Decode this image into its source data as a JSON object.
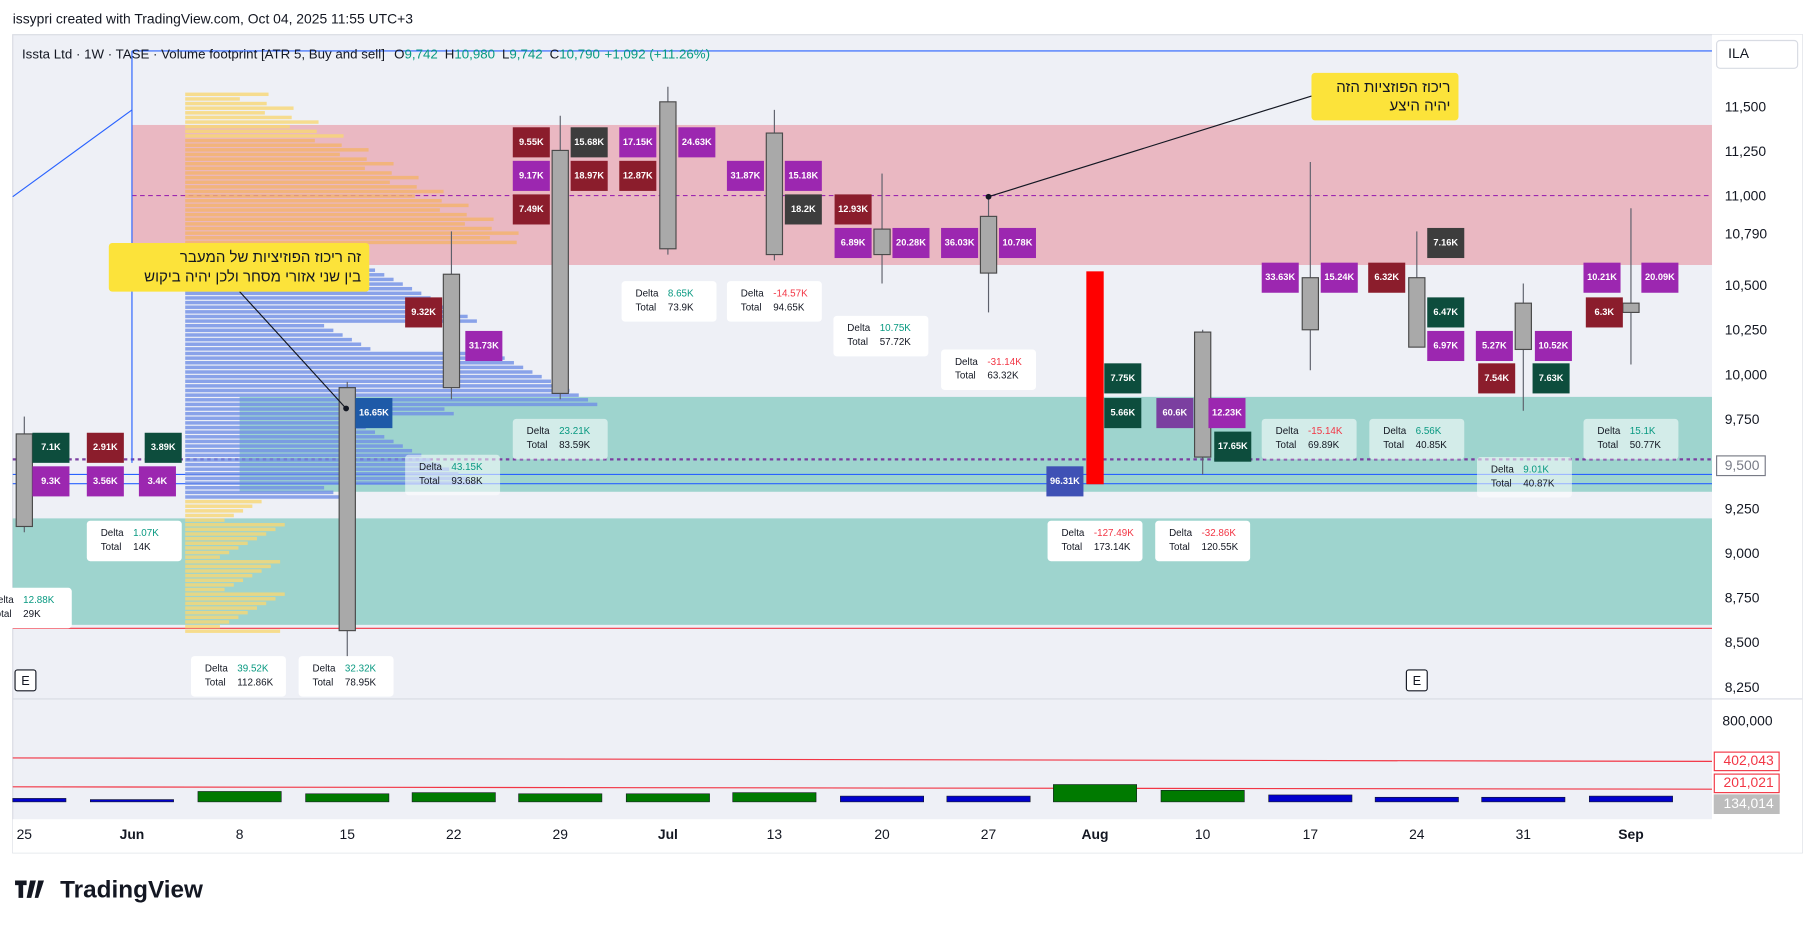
{
  "header": {
    "credit": "issypri created with TradingView.com, Oct 04, 2025 11:55 UTC+3",
    "symbol": "Issta Ltd · 1W · TASE · Volume footprint [ATR 5, Buy and sell]",
    "ohlc": [
      {
        "key": "O",
        "value": "9,742"
      },
      {
        "key": "H",
        "value": "10,980"
      },
      {
        "key": "L",
        "value": "9,742"
      },
      {
        "key": "C",
        "value": "10,790"
      }
    ],
    "change": "+1,092 (+11.26%)"
  },
  "price_axis": {
    "currency": "ILA",
    "ticks": [
      "11,500",
      "11,250",
      "11,000",
      "10,500",
      "10,250",
      "10,000",
      "9,750",
      "9,250",
      "9,000",
      "8,750",
      "8,500",
      "8,250"
    ],
    "last_price": "10,790",
    "marker": "9,500"
  },
  "volume_axis": {
    "tick": "800,000",
    "badges": [
      "402,043",
      "201,021",
      "134,014"
    ]
  },
  "time_axis": [
    "25",
    "Jun",
    "8",
    "15",
    "22",
    "29",
    "Jul",
    "13",
    "20",
    "27",
    "Aug",
    "10",
    "17",
    "24",
    "31",
    "Sep"
  ],
  "annotations": [
    {
      "lines": [
        "ריכוז הפוזציות הזה",
        "יהיה היצע"
      ]
    },
    {
      "lines": [
        "זה ריכוז הפוזיציות של המעבר",
        "בין שני אזורי מסחר ולכן יהיה ביקוש"
      ]
    }
  ],
  "delta_label": "Delta",
  "total_label": "Total",
  "delta_boxes": [
    {
      "delta": "1.07K",
      "total": "14K"
    },
    {
      "delta": "12.88K",
      "total": "29K"
    },
    {
      "delta": "39.52K",
      "total": "112.86K"
    },
    {
      "delta": "32.32K",
      "total": "78.95K"
    },
    {
      "delta": "43.15K",
      "total": "93.68K"
    },
    {
      "delta": "23.21K",
      "total": "83.59K"
    },
    {
      "delta": "8.65K",
      "total": "73.9K"
    },
    {
      "delta": "-14.57K",
      "total": "94.65K"
    },
    {
      "delta": "10.75K",
      "total": "57.72K"
    },
    {
      "delta": "-31.14K",
      "total": "63.32K"
    },
    {
      "delta": "-127.49K",
      "total": "173.14K"
    },
    {
      "delta": "-32.86K",
      "total": "120.55K"
    },
    {
      "delta": "-15.14K",
      "total": "69.89K"
    },
    {
      "delta": "6.56K",
      "total": "40.85K"
    },
    {
      "delta": "9.01K",
      "total": "40.87K"
    },
    {
      "delta": "15.1K",
      "total": "50.77K"
    }
  ],
  "cells": [
    {
      "label": "7.1K",
      "color": "#0d4d3d"
    },
    {
      "label": "2.91K",
      "color": "#8b1d2c"
    },
    {
      "label": "3.89K",
      "color": "#0d4d3d"
    },
    {
      "label": "9.3K",
      "color": "#9c27b0"
    },
    {
      "label": "3.56K",
      "color": "#9c27b0"
    },
    {
      "label": "3.4K",
      "color": "#9c27b0"
    },
    {
      "label": "9.32K",
      "color": "#8b1d2c"
    },
    {
      "label": "31.73K",
      "color": "#9c27b0"
    },
    {
      "label": "16.65K",
      "color": "#1e5aa8"
    },
    {
      "label": "9.55K",
      "color": "#8b1d2c"
    },
    {
      "label": "15.68K",
      "color": "#3d3d3d"
    },
    {
      "label": "9.17K",
      "color": "#9c27b0"
    },
    {
      "label": "18.97K",
      "color": "#8b1d2c"
    },
    {
      "label": "7.49K",
      "color": "#8b1d2c"
    },
    {
      "label": "17.15K",
      "color": "#9c27b0"
    },
    {
      "label": "24.63K",
      "color": "#9c27b0"
    },
    {
      "label": "12.87K",
      "color": "#8b1d2c"
    },
    {
      "label": "31.87K",
      "color": "#9c27b0"
    },
    {
      "label": "15.18K",
      "color": "#9c27b0"
    },
    {
      "label": "18.2K",
      "color": "#3d3d3d"
    },
    {
      "label": "12.93K",
      "color": "#8b1d2c"
    },
    {
      "label": "6.89K",
      "color": "#9c27b0"
    },
    {
      "label": "20.28K",
      "color": "#9c27b0"
    },
    {
      "label": "36.03K",
      "color": "#9c27b0"
    },
    {
      "label": "10.78K",
      "color": "#9c27b0"
    },
    {
      "label": "7.75K",
      "color": "#0d4d3d"
    },
    {
      "label": "5.66K",
      "color": "#0d4d3d"
    },
    {
      "label": "96.31K",
      "color": "#3f51b5"
    },
    {
      "label": "60.6K",
      "color": "#7b3fa0"
    },
    {
      "label": "12.23K",
      "color": "#9c27b0"
    },
    {
      "label": "17.65K",
      "color": "#0d4d3d"
    },
    {
      "label": "33.63K",
      "color": "#9c27b0"
    },
    {
      "label": "15.24K",
      "color": "#9c27b0"
    },
    {
      "label": "6.32K",
      "color": "#8b1d2c"
    },
    {
      "label": "7.16K",
      "color": "#3d3d3d"
    },
    {
      "label": "6.47K",
      "color": "#0d4d3d"
    },
    {
      "label": "6.97K",
      "color": "#9c27b0"
    },
    {
      "label": "5.27K",
      "color": "#9c27b0"
    },
    {
      "label": "10.52K",
      "color": "#9c27b0"
    },
    {
      "label": "7.54K",
      "color": "#8b1d2c"
    },
    {
      "label": "7.63K",
      "color": "#0d4d3d"
    },
    {
      "label": "10.21K",
      "color": "#9c27b0"
    },
    {
      "label": "20.09K",
      "color": "#9c27b0"
    },
    {
      "label": "6.3K",
      "color": "#8b1d2c"
    }
  ],
  "event_markers": [
    "E",
    "E"
  ],
  "logo": "TradingView"
}
